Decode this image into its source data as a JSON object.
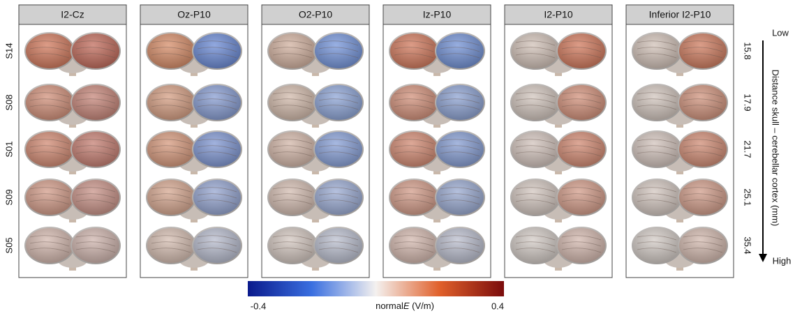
{
  "figure": {
    "columns": [
      "I2-Cz",
      "Oz-P10",
      "O2-P10",
      "Iz-P10",
      "I2-P10",
      "Inferior I2-P10"
    ],
    "rows": [
      "S14",
      "S08",
      "S01",
      "S09",
      "S05"
    ],
    "distances": [
      15.8,
      17.9,
      21.7,
      25.1,
      35.4
    ],
    "distance_axis": {
      "title": "Distance skull – cerebellar cortex (mm)",
      "low": "Low",
      "high": "High"
    },
    "colorbar": {
      "min": -0.4,
      "max": 0.4,
      "label_parts": [
        "normal",
        "E",
        " (V/m)"
      ]
    }
  }
}
